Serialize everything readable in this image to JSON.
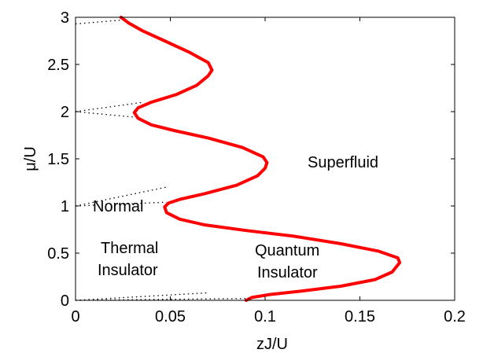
{
  "chart_data": {
    "type": "line",
    "title": "",
    "xlabel": "zJ/U",
    "ylabel": "μ/U",
    "xlim": [
      0,
      0.2
    ],
    "ylim": [
      0,
      3
    ],
    "xticks": [
      "0",
      "0.05",
      "0.1",
      "0.15",
      "0.2"
    ],
    "yticks": [
      "0",
      "0.5",
      "1",
      "1.5",
      "2",
      "2.5",
      "3"
    ],
    "grid": false,
    "legend": "none",
    "colors": {
      "boundary": "#ff0000",
      "normal_boundary": "#000000",
      "axes": "#000000"
    },
    "region_labels": [
      "Superfluid",
      "Normal",
      "Thermal",
      "Insulator",
      "Quantum",
      "Insulator"
    ],
    "series": [
      {
        "style": "solid",
        "points": [
          [
            0.09,
            0.0
          ],
          [
            0.093,
            0.03
          ],
          [
            0.102,
            0.06
          ],
          [
            0.12,
            0.1
          ],
          [
            0.14,
            0.15
          ],
          [
            0.158,
            0.22
          ],
          [
            0.167,
            0.3
          ],
          [
            0.171,
            0.4
          ],
          [
            0.17,
            0.45
          ],
          [
            0.16,
            0.52
          ],
          [
            0.14,
            0.6
          ],
          [
            0.115,
            0.68
          ],
          [
            0.09,
            0.74
          ],
          [
            0.068,
            0.8
          ],
          [
            0.055,
            0.86
          ],
          [
            0.048,
            0.93
          ],
          [
            0.047,
            0.99
          ],
          [
            0.049,
            1.03
          ],
          [
            0.055,
            1.07
          ],
          [
            0.068,
            1.13
          ],
          [
            0.085,
            1.22
          ],
          [
            0.096,
            1.32
          ],
          [
            0.1,
            1.4
          ],
          [
            0.101,
            1.46
          ],
          [
            0.099,
            1.52
          ],
          [
            0.088,
            1.62
          ],
          [
            0.07,
            1.72
          ],
          [
            0.052,
            1.8
          ],
          [
            0.04,
            1.86
          ],
          [
            0.033,
            1.93
          ],
          [
            0.031,
            1.99
          ],
          [
            0.033,
            2.04
          ],
          [
            0.04,
            2.1
          ],
          [
            0.053,
            2.18
          ],
          [
            0.064,
            2.28
          ],
          [
            0.07,
            2.38
          ],
          [
            0.072,
            2.44
          ],
          [
            0.07,
            2.52
          ],
          [
            0.06,
            2.63
          ],
          [
            0.047,
            2.75
          ],
          [
            0.035,
            2.86
          ],
          [
            0.028,
            2.94
          ],
          [
            0.024,
            3.0
          ]
        ]
      },
      {
        "style": "dotted",
        "points": [
          [
            0.0,
            1.0
          ],
          [
            0.048,
            1.04
          ]
        ]
      },
      {
        "style": "dotted",
        "points": [
          [
            0.0,
            1.0
          ],
          [
            0.048,
            1.2
          ]
        ]
      },
      {
        "style": "dotted",
        "points": [
          [
            0.0,
            2.0
          ],
          [
            0.032,
            1.94
          ]
        ]
      },
      {
        "style": "dotted",
        "points": [
          [
            0.0,
            2.0
          ],
          [
            0.036,
            2.1
          ]
        ]
      },
      {
        "style": "dotted",
        "points": [
          [
            0.0,
            2.93
          ],
          [
            0.024,
            2.97
          ]
        ]
      },
      {
        "style": "dotted",
        "points": [
          [
            0.0,
            0.0
          ],
          [
            0.092,
            0.02
          ]
        ]
      },
      {
        "style": "dotted",
        "points": [
          [
            0.0,
            0.0
          ],
          [
            0.07,
            0.08
          ]
        ]
      }
    ]
  }
}
